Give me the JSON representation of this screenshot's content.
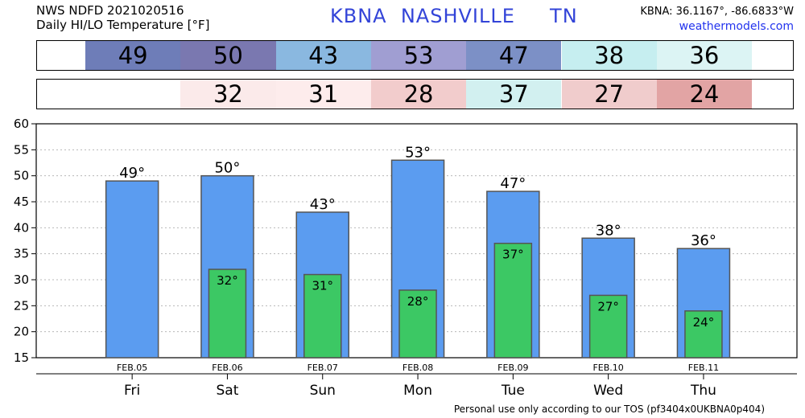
{
  "header": {
    "line1": "NWS NDFD 2021020516",
    "line2": "Daily HI/LO Temperature [°F]",
    "station_title": "KBNA  NASHVILLE     TN",
    "coords": "KBNA: 36.1167°, -86.6833°W",
    "website": "weathermodels.com"
  },
  "strips": {
    "high": [
      {
        "text": "49",
        "color": "#6e7db8"
      },
      {
        "text": "50",
        "color": "#7a78b0"
      },
      {
        "text": "43",
        "color": "#8ab8e0"
      },
      {
        "text": "53",
        "color": "#a09ed2"
      },
      {
        "text": "47",
        "color": "#7c90c6"
      },
      {
        "text": "38",
        "color": "#c6eef0"
      },
      {
        "text": "36",
        "color": "#dcf4f4"
      }
    ],
    "low": [
      {
        "text": "",
        "color": "#ffffff"
      },
      {
        "text": "32",
        "color": "#fbeaea"
      },
      {
        "text": "31",
        "color": "#fdecec"
      },
      {
        "text": "28",
        "color": "#f2cccc"
      },
      {
        "text": "37",
        "color": "#d2f0f0"
      },
      {
        "text": "27",
        "color": "#f0cccc"
      },
      {
        "text": "24",
        "color": "#e2a4a4"
      }
    ]
  },
  "chart_data": {
    "type": "bar",
    "categories": [
      "Fri",
      "Sat",
      "Sun",
      "Mon",
      "Tue",
      "Wed",
      "Thu"
    ],
    "dates": [
      "FEB.05",
      "FEB.06",
      "FEB.07",
      "FEB.08",
      "FEB.09",
      "FEB.10",
      "FEB.11"
    ],
    "series": [
      {
        "values": [
          49,
          50,
          43,
          53,
          47,
          38,
          36
        ],
        "labels": [
          "49°",
          "50°",
          "43°",
          "53°",
          "47°",
          "38°",
          "36°"
        ],
        "color": "#5b9cf0"
      },
      {
        "values": [
          null,
          32,
          31,
          28,
          37,
          27,
          24
        ],
        "labels": [
          "",
          "32°",
          "31°",
          "28°",
          "37°",
          "27°",
          "24°"
        ],
        "color": "#3cc864"
      }
    ],
    "yticks": [
      "15",
      "20",
      "25",
      "30",
      "35",
      "40",
      "45",
      "50",
      "55",
      "60"
    ],
    "ylim": [
      15,
      60
    ],
    "grid": true,
    "gridStyle": "dotted"
  },
  "footer": "Personal use only according to our TOS (pf3404x0UKBNA0p404)"
}
